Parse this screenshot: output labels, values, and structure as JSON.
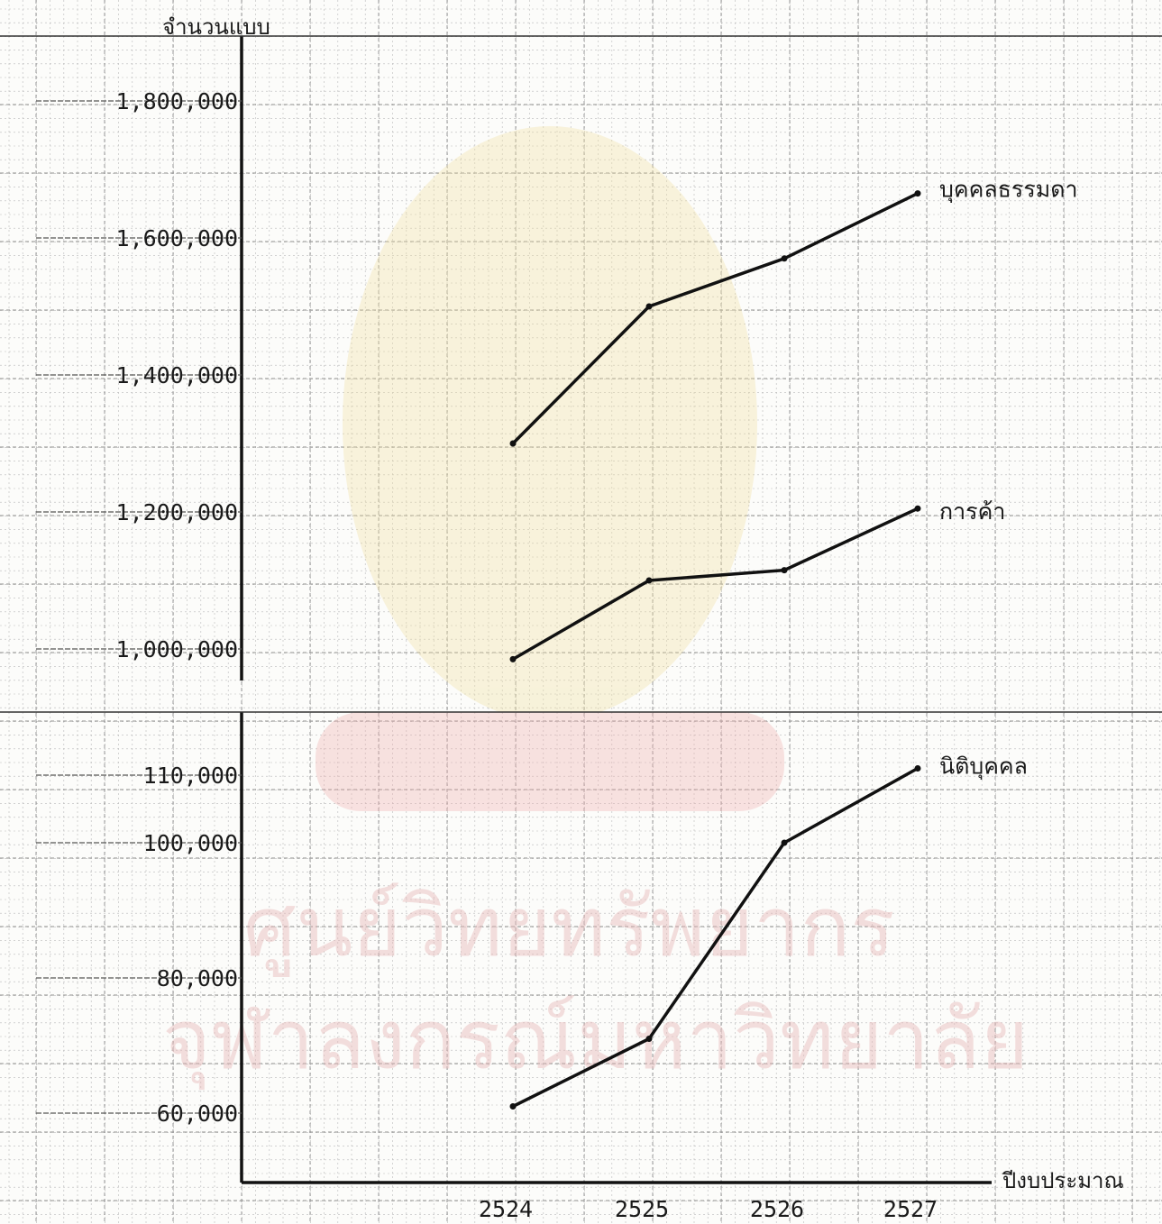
{
  "chart_data": {
    "type": "line",
    "ylabel": "จำนวนแบบ",
    "xlabel": "ปีงบประมาณ",
    "categories": [
      "2524",
      "2525",
      "2526",
      "2527"
    ],
    "y_axis_break": true,
    "upper_panel": {
      "yticks": [
        "1,800,000",
        "1,600,000",
        "1,400,000",
        "1,200,000",
        "1,000,000"
      ],
      "ylim": [
        940000,
        1870000
      ],
      "series": [
        {
          "name": "บุคคลธรรมดา",
          "values": [
            1300000,
            1500000,
            1570000,
            1665000
          ]
        },
        {
          "name": "การค้า",
          "values": [
            985000,
            1100000,
            1115000,
            1205000
          ]
        }
      ]
    },
    "lower_panel": {
      "yticks": [
        "110,000",
        "100,000",
        "80,000",
        "60,000"
      ],
      "ylim": [
        51000,
        120000
      ],
      "series": [
        {
          "name": "นิติบุคคล",
          "values": [
            61000,
            71000,
            100000,
            111000
          ]
        }
      ]
    },
    "grid": true,
    "watermark": {
      "line1": "ศูนย์วิทยทรัพยากร",
      "line2": "จุฬาลงกรณ์มหาวิทยาลัย"
    }
  }
}
